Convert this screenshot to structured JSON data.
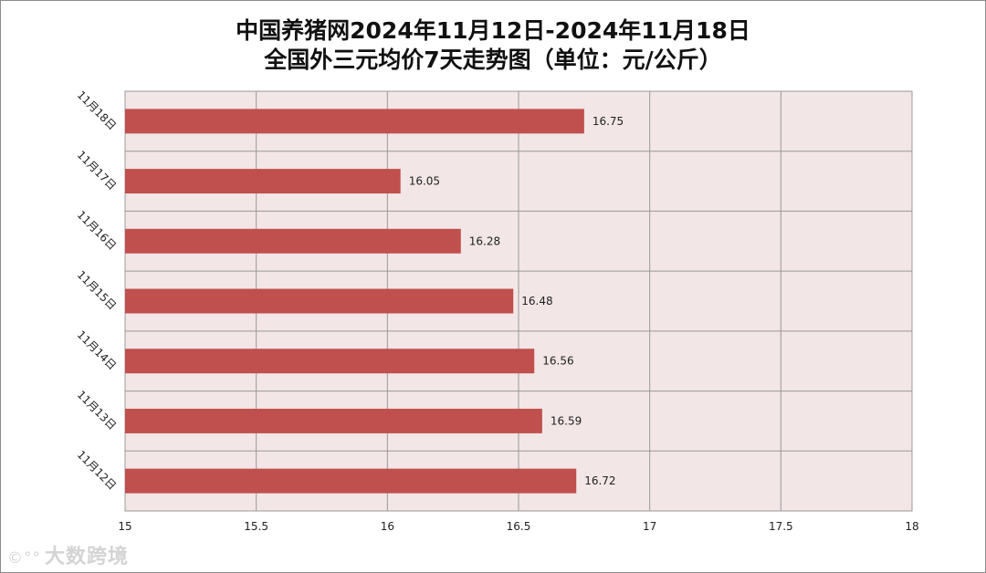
{
  "chart_data": {
    "type": "bar",
    "orientation": "horizontal",
    "title": [
      "中国养猪网2024年11月12日-2024年11月18日",
      "全国外三元均价7天走势图（单位：元/公斤）"
    ],
    "categories": [
      "11月18日",
      "11月17日",
      "11月16日",
      "11月15日",
      "11月14日",
      "11月13日",
      "11月12日"
    ],
    "values": [
      16.75,
      16.05,
      16.28,
      16.48,
      16.56,
      16.59,
      16.72
    ],
    "xlim": [
      15,
      18
    ],
    "x_ticks": [
      "15",
      "15.5",
      "16",
      "16.5",
      "17",
      "17.5",
      "18"
    ],
    "grid": true,
    "data_labels": true,
    "legend": "none"
  },
  "colors": {
    "bar": "#c0504d",
    "plot_background": "#f2e6e6",
    "grid": "#999999"
  },
  "watermark": {
    "logo_icon": "weibo-logo-icon",
    "text": "大数跨境"
  }
}
